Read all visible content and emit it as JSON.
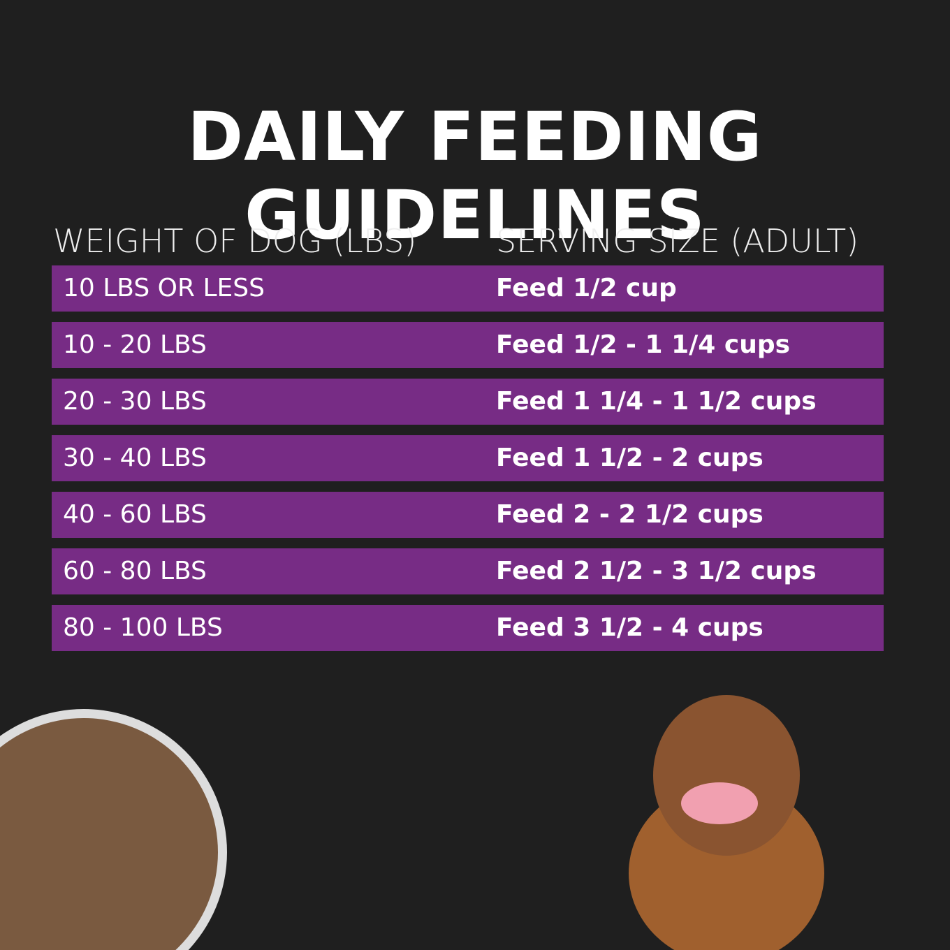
{
  "title": "DAILY FEEDING GUIDELINES",
  "table": {
    "headers": [
      "WEIGHT OF DOG (LBS)",
      "SERVING SIZE (ADULT)"
    ],
    "rows": [
      [
        "10 LBS OR LESS",
        "Feed 1/2 cup"
      ],
      [
        "10 - 20 LBS",
        "Feed 1/2 - 1 1/4 cups"
      ],
      [
        "20 - 30 LBS",
        "Feed 1 1/4 - 1 1/2 cups"
      ],
      [
        "30 - 40 LBS",
        "Feed 1 1/2 - 2 cups"
      ],
      [
        "40 - 60 LBS",
        "Feed 2 - 2 1/2 cups"
      ],
      [
        "60 - 80 LBS",
        "Feed 2 1/2 - 3 1/2 cups"
      ],
      [
        "80 - 100 LBS",
        "Feed 3 1/2 - 4 cups"
      ]
    ]
  }
}
